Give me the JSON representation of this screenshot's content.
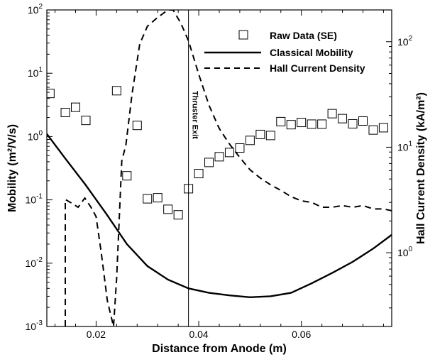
{
  "chart_data": {
    "type": "scatter",
    "title": "",
    "xlabel": "Distance from Anode (m)",
    "ylabel_left": "Mobility",
    "ylabel_left_unit": "(m²/V/s)",
    "ylabel_right": "Hall Current Density",
    "ylabel_right_unit": "(kA/m²)",
    "xlim": [
      0.0104,
      0.0776
    ],
    "ylim_left": [
      0.001,
      100
    ],
    "ylim_right": [
      0.2,
      200
    ],
    "y_scale": "log",
    "x_ticks": [
      0.02,
      0.04,
      0.06
    ],
    "x_tick_labels": [
      "0.02",
      "0.04",
      "0.06"
    ],
    "y_left_ticks": [
      {
        "value": 0.001,
        "base": "10",
        "exp": "-3"
      },
      {
        "value": 0.01,
        "base": "10",
        "exp": "-2"
      },
      {
        "value": 0.1,
        "base": "10",
        "exp": "-1"
      },
      {
        "value": 1,
        "base": "10",
        "exp": "0"
      },
      {
        "value": 10,
        "base": "10",
        "exp": "1"
      },
      {
        "value": 100,
        "base": "10",
        "exp": "2"
      }
    ],
    "y_right_ticks": [
      {
        "value": 1,
        "base": "10",
        "exp": "0"
      },
      {
        "value": 10,
        "base": "10",
        "exp": "1"
      },
      {
        "value": 100,
        "base": "10",
        "exp": "2"
      }
    ],
    "grid": false,
    "legend_position": "top-right",
    "legend": [
      {
        "label": "Raw Data (SE)",
        "style": "square-marker"
      },
      {
        "label": "Classical Mobility",
        "style": "solid-line"
      },
      {
        "label": "Hall Current Density",
        "style": "dashed-line"
      }
    ],
    "annotation": {
      "text": "Thruster Exit",
      "x": 0.038
    },
    "series": [
      {
        "name": "Raw Data (SE)",
        "kind": "markers",
        "axis": "left",
        "x": [
          0.011,
          0.014,
          0.016,
          0.018,
          0.024,
          0.026,
          0.028,
          0.03,
          0.032,
          0.034,
          0.036,
          0.038,
          0.04,
          0.042,
          0.044,
          0.046,
          0.048,
          0.05,
          0.052,
          0.054,
          0.056,
          0.058,
          0.06,
          0.062,
          0.064,
          0.066,
          0.068,
          0.07,
          0.072,
          0.074,
          0.076
        ],
        "y": [
          4.8,
          2.4,
          2.9,
          1.8,
          5.3,
          0.24,
          1.5,
          0.104,
          0.108,
          0.071,
          0.058,
          0.15,
          0.26,
          0.39,
          0.48,
          0.56,
          0.66,
          0.87,
          1.08,
          1.04,
          1.72,
          1.54,
          1.67,
          1.57,
          1.57,
          2.3,
          1.92,
          1.59,
          1.76,
          1.27,
          1.38
        ]
      },
      {
        "name": "Classical Mobility",
        "kind": "solid",
        "axis": "left",
        "x": [
          0.0104,
          0.014,
          0.018,
          0.022,
          0.026,
          0.03,
          0.034,
          0.038,
          0.042,
          0.046,
          0.05,
          0.054,
          0.058,
          0.062,
          0.066,
          0.07,
          0.074,
          0.0776
        ],
        "y": [
          1.1,
          0.45,
          0.17,
          0.06,
          0.02,
          0.009,
          0.0055,
          0.004,
          0.0034,
          0.0031,
          0.0029,
          0.003,
          0.0034,
          0.0048,
          0.007,
          0.0105,
          0.017,
          0.028
        ]
      },
      {
        "name": "Hall Current Density",
        "kind": "dashed",
        "axis": "right",
        "x": [
          0.014,
          0.014,
          0.015,
          0.0165,
          0.0178,
          0.019,
          0.02,
          0.021,
          0.0222,
          0.0234,
          0.024,
          0.025,
          0.0258,
          0.027,
          0.0285,
          0.03,
          0.032,
          0.034,
          0.035,
          0.0365,
          0.038,
          0.04,
          0.042,
          0.044,
          0.046,
          0.048,
          0.05,
          0.052,
          0.054,
          0.056,
          0.058,
          0.06,
          0.062,
          0.064,
          0.066,
          0.068,
          0.07,
          0.072,
          0.074,
          0.076,
          0.0776
        ],
        "y": [
          0.2,
          3.2,
          3.0,
          2.7,
          3.3,
          2.7,
          2.2,
          1.0,
          0.35,
          0.2,
          0.58,
          7.4,
          10.5,
          32,
          95,
          140,
          170,
          200,
          200,
          150,
          102,
          49,
          25,
          15,
          10.7,
          8.0,
          6.1,
          5.1,
          4.4,
          3.9,
          3.4,
          3.1,
          3.0,
          2.7,
          2.7,
          2.8,
          2.7,
          2.8,
          2.6,
          2.6,
          2.5
        ]
      }
    ]
  }
}
